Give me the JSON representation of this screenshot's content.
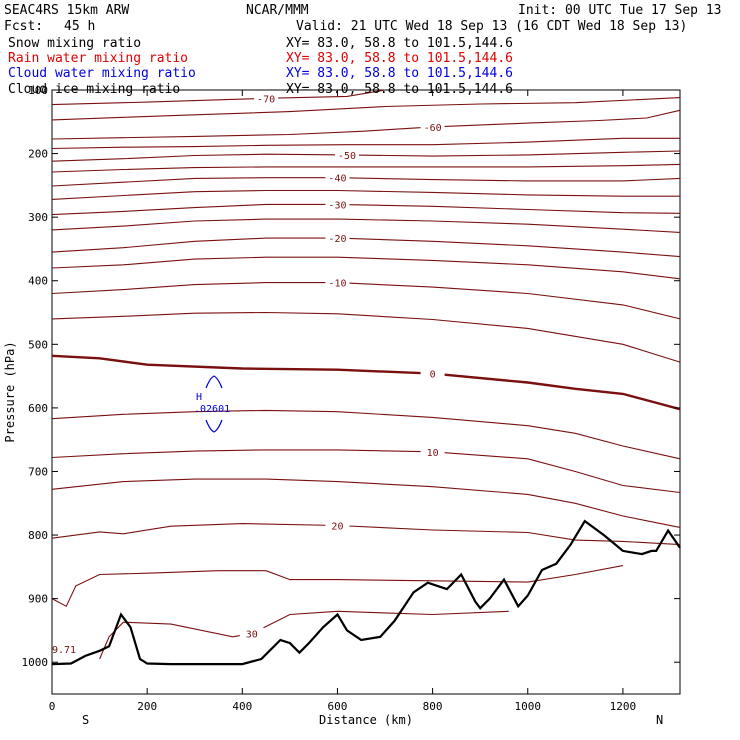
{
  "header": {
    "model": "SEAC4RS 15km ARW",
    "org": "NCAR/MMM",
    "init": "Init: 00 UTC Tue 17 Sep 13",
    "fcst_label": "Fcst:",
    "fcst_value": "45 h",
    "valid": "Valid: 21 UTC Wed 18 Sep 13 (16 CDT Wed 18 Sep 13)"
  },
  "fields": [
    {
      "label": "Snow mixing ratio",
      "xy": "XY=  83.0, 58.8 to 101.5,144.6",
      "color": "#000000"
    },
    {
      "label": "Rain water mixing ratio",
      "xy": "XY=  83.0, 58.8 to 101.5,144.6",
      "color": "#e00000"
    },
    {
      "label": "Cloud water mixing ratio",
      "xy": "XY=  83.0, 58.8 to 101.5,144.6",
      "color": "#0000e0"
    },
    {
      "label": "Cloud ice mixing ratio",
      "xy": "XY=  83.0, 58.8 to 101.5,144.6",
      "color": "#000000"
    }
  ],
  "axes": {
    "xlabel": "Distance (km)",
    "ylabel": "Pressure (hPa)",
    "x_ticks": [
      "0",
      "200",
      "400",
      "600",
      "800",
      "1000",
      "1200"
    ],
    "y_ticks": [
      "100",
      "200",
      "300",
      "400",
      "500",
      "600",
      "700",
      "800",
      "900",
      "1000"
    ],
    "left_end": "S",
    "right_end": "N"
  },
  "cloud_max": {
    "marker": "H",
    "value": ".02601",
    "color": "#0000e0"
  },
  "surface_label": "9.71",
  "chart_data": {
    "type": "line",
    "title": "",
    "xlabel": "Distance (km)",
    "ylabel": "Pressure (hPa)",
    "xlim": [
      0,
      1320
    ],
    "ylim": [
      1050,
      100
    ],
    "grid": false,
    "isotherm_color": "#7a1010",
    "terrain_color": "#000000",
    "isotherms": [
      {
        "t": -70,
        "label": "-70",
        "bold": false,
        "points": [
          [
            0,
            123
          ],
          [
            200,
            119
          ],
          [
            450,
            113
          ],
          [
            620,
            110
          ],
          [
            700,
            100
          ]
        ]
      },
      {
        "t": -65,
        "label": "",
        "bold": false,
        "points": [
          [
            0,
            147
          ],
          [
            150,
            143
          ],
          [
            300,
            139
          ],
          [
            500,
            134
          ],
          [
            700,
            126
          ],
          [
            900,
            122
          ],
          [
            1100,
            120
          ],
          [
            1320,
            112
          ]
        ]
      },
      {
        "t": -60,
        "label": "-60",
        "bold": false,
        "points": [
          [
            0,
            177
          ],
          [
            150,
            175
          ],
          [
            300,
            173
          ],
          [
            500,
            170
          ],
          [
            650,
            165
          ],
          [
            800,
            158
          ],
          [
            1000,
            152
          ],
          [
            1150,
            148
          ],
          [
            1250,
            144
          ],
          [
            1320,
            132
          ]
        ]
      },
      {
        "t": -55,
        "label": "",
        "bold": false,
        "points": [
          [
            0,
            192
          ],
          [
            150,
            190
          ],
          [
            300,
            189
          ],
          [
            450,
            187
          ],
          [
            620,
            186
          ],
          [
            800,
            186
          ],
          [
            1000,
            182
          ],
          [
            1200,
            176
          ],
          [
            1320,
            176
          ]
        ]
      },
      {
        "t": -50,
        "label": "-50",
        "bold": false,
        "points": [
          [
            0,
            212
          ],
          [
            150,
            208
          ],
          [
            300,
            203
          ],
          [
            450,
            201
          ],
          [
            620,
            202
          ],
          [
            800,
            204
          ],
          [
            1000,
            202
          ],
          [
            1200,
            198
          ],
          [
            1320,
            196
          ]
        ]
      },
      {
        "t": -45,
        "label": "",
        "bold": false,
        "points": [
          [
            0,
            229
          ],
          [
            150,
            225
          ],
          [
            300,
            222
          ],
          [
            450,
            221
          ],
          [
            600,
            221
          ],
          [
            800,
            221
          ],
          [
            1000,
            221
          ],
          [
            1200,
            219
          ],
          [
            1320,
            217
          ]
        ]
      },
      {
        "t": -40,
        "label": "-40",
        "bold": false,
        "points": [
          [
            0,
            251
          ],
          [
            150,
            245
          ],
          [
            300,
            239
          ],
          [
            450,
            238
          ],
          [
            600,
            238
          ],
          [
            800,
            241
          ],
          [
            1000,
            243
          ],
          [
            1200,
            243
          ],
          [
            1320,
            239
          ]
        ]
      },
      {
        "t": -35,
        "label": "",
        "bold": false,
        "points": [
          [
            0,
            272
          ],
          [
            150,
            266
          ],
          [
            300,
            260
          ],
          [
            450,
            258
          ],
          [
            600,
            258
          ],
          [
            800,
            261
          ],
          [
            1000,
            265
          ],
          [
            1200,
            267
          ],
          [
            1320,
            267
          ]
        ]
      },
      {
        "t": -30,
        "label": "-30",
        "bold": false,
        "points": [
          [
            0,
            296
          ],
          [
            150,
            291
          ],
          [
            300,
            285
          ],
          [
            450,
            280
          ],
          [
            600,
            280
          ],
          [
            800,
            283
          ],
          [
            1000,
            288
          ],
          [
            1200,
            293
          ],
          [
            1320,
            294
          ]
        ]
      },
      {
        "t": -25,
        "label": "",
        "bold": false,
        "points": [
          [
            0,
            320
          ],
          [
            150,
            314
          ],
          [
            300,
            306
          ],
          [
            450,
            303
          ],
          [
            600,
            303
          ],
          [
            800,
            306
          ],
          [
            1000,
            311
          ],
          [
            1200,
            319
          ],
          [
            1320,
            324
          ]
        ]
      },
      {
        "t": -20,
        "label": "-20",
        "bold": false,
        "points": [
          [
            0,
            355
          ],
          [
            150,
            348
          ],
          [
            300,
            338
          ],
          [
            450,
            333
          ],
          [
            600,
            333
          ],
          [
            800,
            338
          ],
          [
            1000,
            345
          ],
          [
            1200,
            355
          ],
          [
            1320,
            362
          ]
        ]
      },
      {
        "t": -15,
        "label": "",
        "bold": false,
        "points": [
          [
            0,
            380
          ],
          [
            150,
            375
          ],
          [
            300,
            366
          ],
          [
            450,
            363
          ],
          [
            600,
            363
          ],
          [
            800,
            368
          ],
          [
            1000,
            375
          ],
          [
            1200,
            386
          ],
          [
            1320,
            397
          ]
        ]
      },
      {
        "t": -10,
        "label": "-10",
        "bold": false,
        "points": [
          [
            0,
            420
          ],
          [
            150,
            414
          ],
          [
            300,
            406
          ],
          [
            450,
            403
          ],
          [
            600,
            403
          ],
          [
            800,
            410
          ],
          [
            1000,
            420
          ],
          [
            1200,
            438
          ],
          [
            1320,
            460
          ]
        ]
      },
      {
        "t": -5,
        "label": "",
        "bold": false,
        "points": [
          [
            0,
            460
          ],
          [
            150,
            456
          ],
          [
            300,
            451
          ],
          [
            450,
            450
          ],
          [
            600,
            452
          ],
          [
            800,
            461
          ],
          [
            1000,
            475
          ],
          [
            1200,
            500
          ],
          [
            1320,
            528
          ]
        ]
      },
      {
        "t": 0,
        "label": "0",
        "bold": true,
        "points": [
          [
            0,
            518
          ],
          [
            100,
            522
          ],
          [
            200,
            532
          ],
          [
            400,
            538
          ],
          [
            600,
            540
          ],
          [
            800,
            546
          ],
          [
            1000,
            560
          ],
          [
            1100,
            570
          ],
          [
            1200,
            578
          ],
          [
            1260,
            590
          ],
          [
            1320,
            602
          ]
        ]
      },
      {
        "t": 5,
        "label": "",
        "bold": false,
        "points": [
          [
            0,
            617
          ],
          [
            150,
            610
          ],
          [
            300,
            606
          ],
          [
            450,
            604
          ],
          [
            600,
            606
          ],
          [
            800,
            615
          ],
          [
            1000,
            628
          ],
          [
            1100,
            640
          ],
          [
            1200,
            660
          ],
          [
            1320,
            680
          ]
        ]
      },
      {
        "t": 10,
        "label": "10",
        "bold": false,
        "points": [
          [
            0,
            678
          ],
          [
            150,
            672
          ],
          [
            300,
            668
          ],
          [
            450,
            666
          ],
          [
            600,
            666
          ],
          [
            800,
            669
          ],
          [
            1000,
            680
          ],
          [
            1100,
            700
          ],
          [
            1200,
            722
          ],
          [
            1320,
            733
          ]
        ]
      },
      {
        "t": 15,
        "label": "",
        "bold": false,
        "points": [
          [
            0,
            728
          ],
          [
            150,
            716
          ],
          [
            300,
            712
          ],
          [
            450,
            712
          ],
          [
            600,
            716
          ],
          [
            800,
            724
          ],
          [
            1000,
            736
          ],
          [
            1100,
            750
          ],
          [
            1200,
            770
          ],
          [
            1320,
            788
          ]
        ]
      },
      {
        "t": 20,
        "label": "20",
        "bold": false,
        "points": [
          [
            0,
            805
          ],
          [
            100,
            795
          ],
          [
            150,
            798
          ],
          [
            250,
            786
          ],
          [
            400,
            782
          ],
          [
            600,
            785
          ],
          [
            800,
            792
          ],
          [
            1000,
            796
          ],
          [
            1100,
            808
          ],
          [
            1200,
            810
          ],
          [
            1320,
            815
          ]
        ]
      },
      {
        "t": 25,
        "label": "",
        "bold": false,
        "points": [
          [
            0,
            900
          ],
          [
            30,
            912
          ],
          [
            50,
            880
          ],
          [
            100,
            862
          ],
          [
            200,
            860
          ],
          [
            350,
            856
          ],
          [
            450,
            856
          ],
          [
            500,
            870
          ],
          [
            600,
            870
          ],
          [
            800,
            872
          ],
          [
            1000,
            874
          ],
          [
            1100,
            862
          ],
          [
            1200,
            848
          ]
        ]
      },
      {
        "t": 30,
        "label": "30",
        "bold": false,
        "points": [
          [
            100,
            995
          ],
          [
            120,
            960
          ],
          [
            150,
            937
          ],
          [
            250,
            940
          ],
          [
            380,
            960
          ],
          [
            420,
            955
          ],
          [
            500,
            925
          ],
          [
            600,
            920
          ],
          [
            800,
            925
          ],
          [
            960,
            920
          ]
        ]
      }
    ],
    "terrain": {
      "name": "",
      "points": [
        [
          0,
          1003
        ],
        [
          40,
          1002
        ],
        [
          70,
          990
        ],
        [
          100,
          982
        ],
        [
          120,
          975
        ],
        [
          145,
          925
        ],
        [
          165,
          945
        ],
        [
          185,
          995
        ],
        [
          200,
          1002
        ],
        [
          250,
          1003
        ],
        [
          400,
          1003
        ],
        [
          440,
          995
        ],
        [
          480,
          965
        ],
        [
          500,
          970
        ],
        [
          520,
          985
        ],
        [
          540,
          970
        ],
        [
          570,
          945
        ],
        [
          600,
          925
        ],
        [
          620,
          950
        ],
        [
          650,
          965
        ],
        [
          690,
          960
        ],
        [
          720,
          935
        ],
        [
          760,
          890
        ],
        [
          790,
          875
        ],
        [
          810,
          880
        ],
        [
          830,
          885
        ],
        [
          860,
          862
        ],
        [
          890,
          905
        ],
        [
          900,
          915
        ],
        [
          920,
          900
        ],
        [
          950,
          870
        ],
        [
          980,
          912
        ],
        [
          1000,
          895
        ],
        [
          1030,
          855
        ],
        [
          1060,
          845
        ],
        [
          1090,
          815
        ],
        [
          1120,
          778
        ],
        [
          1160,
          800
        ],
        [
          1200,
          825
        ],
        [
          1240,
          830
        ],
        [
          1260,
          825
        ],
        [
          1270,
          825
        ],
        [
          1295,
          793
        ],
        [
          1320,
          820
        ]
      ]
    }
  }
}
